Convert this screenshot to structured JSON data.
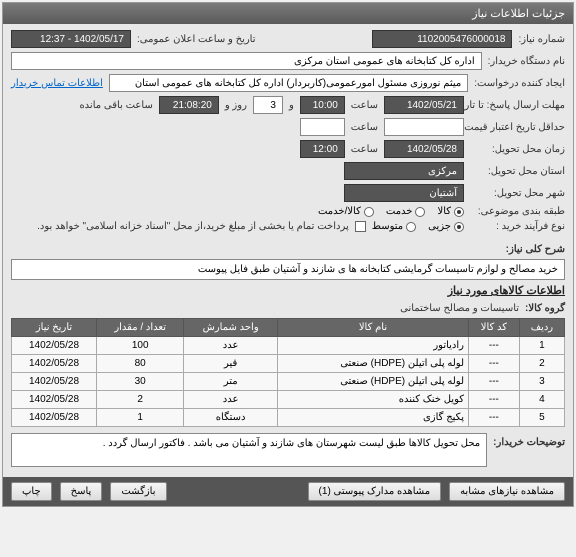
{
  "panel": {
    "title": "جزئیات اطلاعات نیاز"
  },
  "form": {
    "req_no_label": "شماره نیاز:",
    "req_no": "1102005476000018",
    "announce_label": "تاریخ و ساعت اعلان عمومی:",
    "announce_value": "1402/05/17 - 12:37",
    "buyer_org_label": "نام دستگاه خریدار:",
    "buyer_org": "اداره کل کتابخانه های عمومی استان مرکزی",
    "creator_label": "ایجاد کننده درخواست:",
    "creator": "میثم نوروزی مسئول امورعمومی(کاربردار) اداره کل کتابخانه های عمومی استان",
    "contact_link": "اطلاعات تماس خریدار",
    "deadline_label": "مهلت ارسال پاسخ: تا تاریخ:",
    "deadline_date": "1402/05/21",
    "time_label": "ساعت",
    "deadline_time": "10:00",
    "and_label": "و",
    "remaining_days": "3",
    "day_and_label": "روز و",
    "remaining_time": "21:08:20",
    "remaining_label": "ساعت باقی مانده",
    "validity_label": "حداقل تاریخ اعتبار قیمت: تا تاریخ:",
    "delivery_date_label": "زمان محل تحویل:",
    "delivery_date": "1402/05/28",
    "delivery_time": "12:00",
    "province_label": "استان محل تحویل:",
    "province": "مرکزی",
    "city_label": "شهر محل تحویل:",
    "city": "آشتیان",
    "subject_class_label": "طبقه بندی موضوعی:",
    "subject_opt1": "کالا",
    "subject_opt2": "خدمت",
    "subject_opt3": "کالا/خدمت",
    "purchase_type_label": "نوع فرآیند خرید :",
    "purchase_opt1": "جزیی",
    "purchase_opt2": "متوسط",
    "payment_note": "پرداخت تمام یا بخشی از مبلغ خرید،از محل \"اسناد خزانه اسلامی\" خواهد بود.",
    "summary_label": "شرح کلی نیاز:",
    "summary": "خرید مصالح و لوازم تاسیسات گرمایشی کتابخانه ها ی شازند و آشتیان طبق فایل پیوست",
    "goods_section": "اطلاعات کالاهای مورد نیاز",
    "group_label": "گروه کالا:",
    "group_value": "تاسیسات و مصالح ساختمانی",
    "buyer_notes_label": "توضیحات خریدار:",
    "buyer_notes": "محل تحویل کالاها طبق لیست شهرستان های شازند و آشتیان می باشد . فاکتور ارسال گردد ."
  },
  "table": {
    "headers": {
      "row": "ردیف",
      "code": "کد کالا",
      "name": "نام کالا",
      "unit": "واحد شمارش",
      "qty": "تعداد / مقدار",
      "date": "تاریخ نیاز"
    },
    "rows": [
      {
        "n": "1",
        "code": "---",
        "name": "رادیاتور",
        "unit": "عدد",
        "qty": "100",
        "date": "1402/05/28"
      },
      {
        "n": "2",
        "code": "---",
        "name": "لوله پلی اتیلن (HDPE) صنعتی",
        "unit": "قیر",
        "qty": "80",
        "date": "1402/05/28"
      },
      {
        "n": "3",
        "code": "---",
        "name": "لوله پلی اتیلن (HDPE) صنعتی",
        "unit": "متر",
        "qty": "30",
        "date": "1402/05/28"
      },
      {
        "n": "4",
        "code": "---",
        "name": "کویل خنک کننده",
        "unit": "عدد",
        "qty": "2",
        "date": "1402/05/28"
      },
      {
        "n": "5",
        "code": "---",
        "name": "پکیج گازی",
        "unit": "دستگاه",
        "qty": "1",
        "date": "1402/05/28"
      }
    ]
  },
  "footer": {
    "btn_similar": "مشاهده نیازهای مشابه",
    "btn_attach": "مشاهده مدارک پیوستی (1)",
    "btn_back": "بازگشت",
    "btn_reply": "پاسخ",
    "btn_print": "چاپ"
  },
  "watermark": "1 8 1"
}
